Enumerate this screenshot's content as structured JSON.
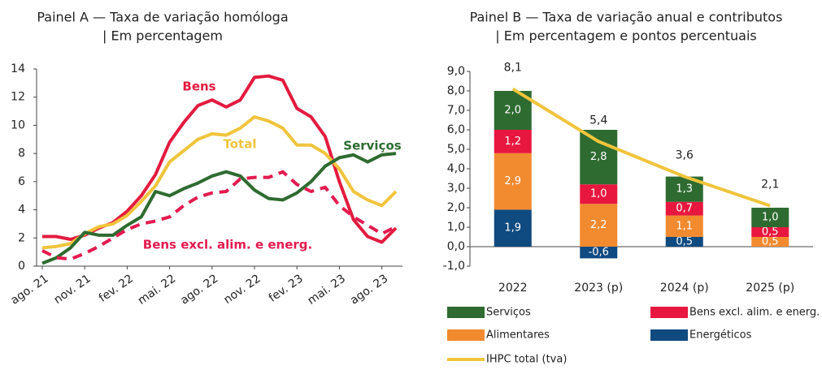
{
  "chart_data": [
    {
      "type": "line",
      "title": "Painel A — Taxa de variação homóloga",
      "subtitle": "| Em percentagem",
      "categories": [
        "ago. 21",
        null,
        null,
        "nov. 21",
        null,
        null,
        "fev. 22",
        null,
        null,
        "mai. 22",
        null,
        null,
        "ago. 22",
        null,
        null,
        "nov. 22",
        null,
        null,
        "fev. 23",
        null,
        null,
        "mai. 23",
        null,
        null,
        "ago. 23",
        null
      ],
      "ylim": [
        0,
        14
      ],
      "yticks": [
        0,
        2,
        4,
        6,
        8,
        10,
        12,
        14
      ],
      "series": [
        {
          "name": "Bens",
          "color": "#e31b3f",
          "dash": false,
          "values": [
            2.1,
            2.1,
            1.9,
            2.2,
            2.7,
            3.1,
            3.9,
            5.0,
            6.5,
            8.8,
            10.2,
            11.4,
            11.8,
            11.3,
            11.8,
            13.4,
            13.5,
            13.2,
            11.2,
            10.6,
            9.2,
            6.0,
            3.3,
            2.1,
            1.7,
            2.7
          ]
        },
        {
          "name": "Total",
          "color": "#f0c43c",
          "dash": false,
          "values": [
            1.3,
            1.4,
            1.6,
            2.3,
            2.8,
            3.0,
            3.6,
            4.6,
            5.7,
            7.4,
            8.2,
            9.0,
            9.4,
            9.3,
            9.8,
            10.6,
            10.3,
            9.8,
            8.6,
            8.6,
            8.0,
            6.9,
            5.3,
            4.7,
            4.3,
            5.3
          ]
        },
        {
          "name": "Serviços",
          "color": "#2e6b30",
          "dash": false,
          "values": [
            0.2,
            0.6,
            1.3,
            2.4,
            2.2,
            2.2,
            2.9,
            3.5,
            5.3,
            5.0,
            5.5,
            5.9,
            6.4,
            6.7,
            6.4,
            5.4,
            4.8,
            4.7,
            5.2,
            6.0,
            7.1,
            7.7,
            7.9,
            7.4,
            7.9,
            8.0
          ]
        },
        {
          "name": "Bens excl. alim. e energ.",
          "color": "#e31b4f",
          "dash": true,
          "values": [
            1.1,
            0.6,
            0.5,
            0.9,
            1.4,
            2.0,
            2.6,
            3.0,
            3.2,
            3.5,
            4.3,
            4.9,
            5.2,
            5.3,
            6.2,
            6.3,
            6.3,
            6.7,
            5.8,
            5.3,
            5.6,
            4.3,
            3.5,
            2.9,
            2.3,
            2.8
          ]
        }
      ]
    },
    {
      "type": "stacked-bar",
      "title": "Painel B — Taxa de variação anual e contributos",
      "subtitle": "| Em percentagem e pontos percentuais",
      "categories": [
        "2022",
        "2023 (p)",
        "2024 (p)",
        "2025 (p)"
      ],
      "ylim": [
        -1,
        9
      ],
      "yticks": [
        {
          "value": -1,
          "label": "-1,0"
        },
        {
          "value": 0,
          "label": "0,0"
        },
        {
          "value": 1,
          "label": "1,0"
        },
        {
          "value": 2,
          "label": "2,0"
        },
        {
          "value": 3,
          "label": "3,0"
        },
        {
          "value": 4,
          "label": "4,0"
        },
        {
          "value": 5,
          "label": "5,0"
        },
        {
          "value": 6,
          "label": "6,0"
        },
        {
          "value": 7,
          "label": "7,0"
        },
        {
          "value": 8,
          "label": "8,0"
        },
        {
          "value": 9,
          "label": "9,0"
        }
      ],
      "series": [
        {
          "name": "Energéticos",
          "color": "#0f4a80",
          "values": [
            1.9,
            -0.6,
            0.5,
            0
          ],
          "value_labels": [
            "1,9",
            "-0,6",
            "0,5",
            null
          ]
        },
        {
          "name": "Alimentares",
          "color": "#f28a30",
          "values": [
            2.9,
            2.2,
            1.1,
            0.5
          ],
          "value_labels": [
            "2,9",
            "2,2",
            "1,1",
            "0,5"
          ]
        },
        {
          "name": "Bens excl. alim. e energ.",
          "color": "#e8173f",
          "values": [
            1.2,
            1.0,
            0.7,
            0.5
          ],
          "value_labels": [
            "1,2",
            "1,0",
            "0,7",
            "0,5"
          ]
        },
        {
          "name": "Serviços",
          "color": "#2e6b30",
          "values": [
            2.0,
            2.8,
            1.3,
            1.0
          ],
          "value_labels": [
            "2,0",
            "2,8",
            "1,3",
            "1,0"
          ]
        },
        {
          "name": "IHPC total (tva)",
          "color": "#f0c43c",
          "type": "line",
          "values": [
            8.1,
            5.4,
            3.6,
            2.1
          ],
          "value_labels": [
            "8,1",
            "5,4",
            "3,6",
            "2,1"
          ]
        }
      ]
    }
  ]
}
